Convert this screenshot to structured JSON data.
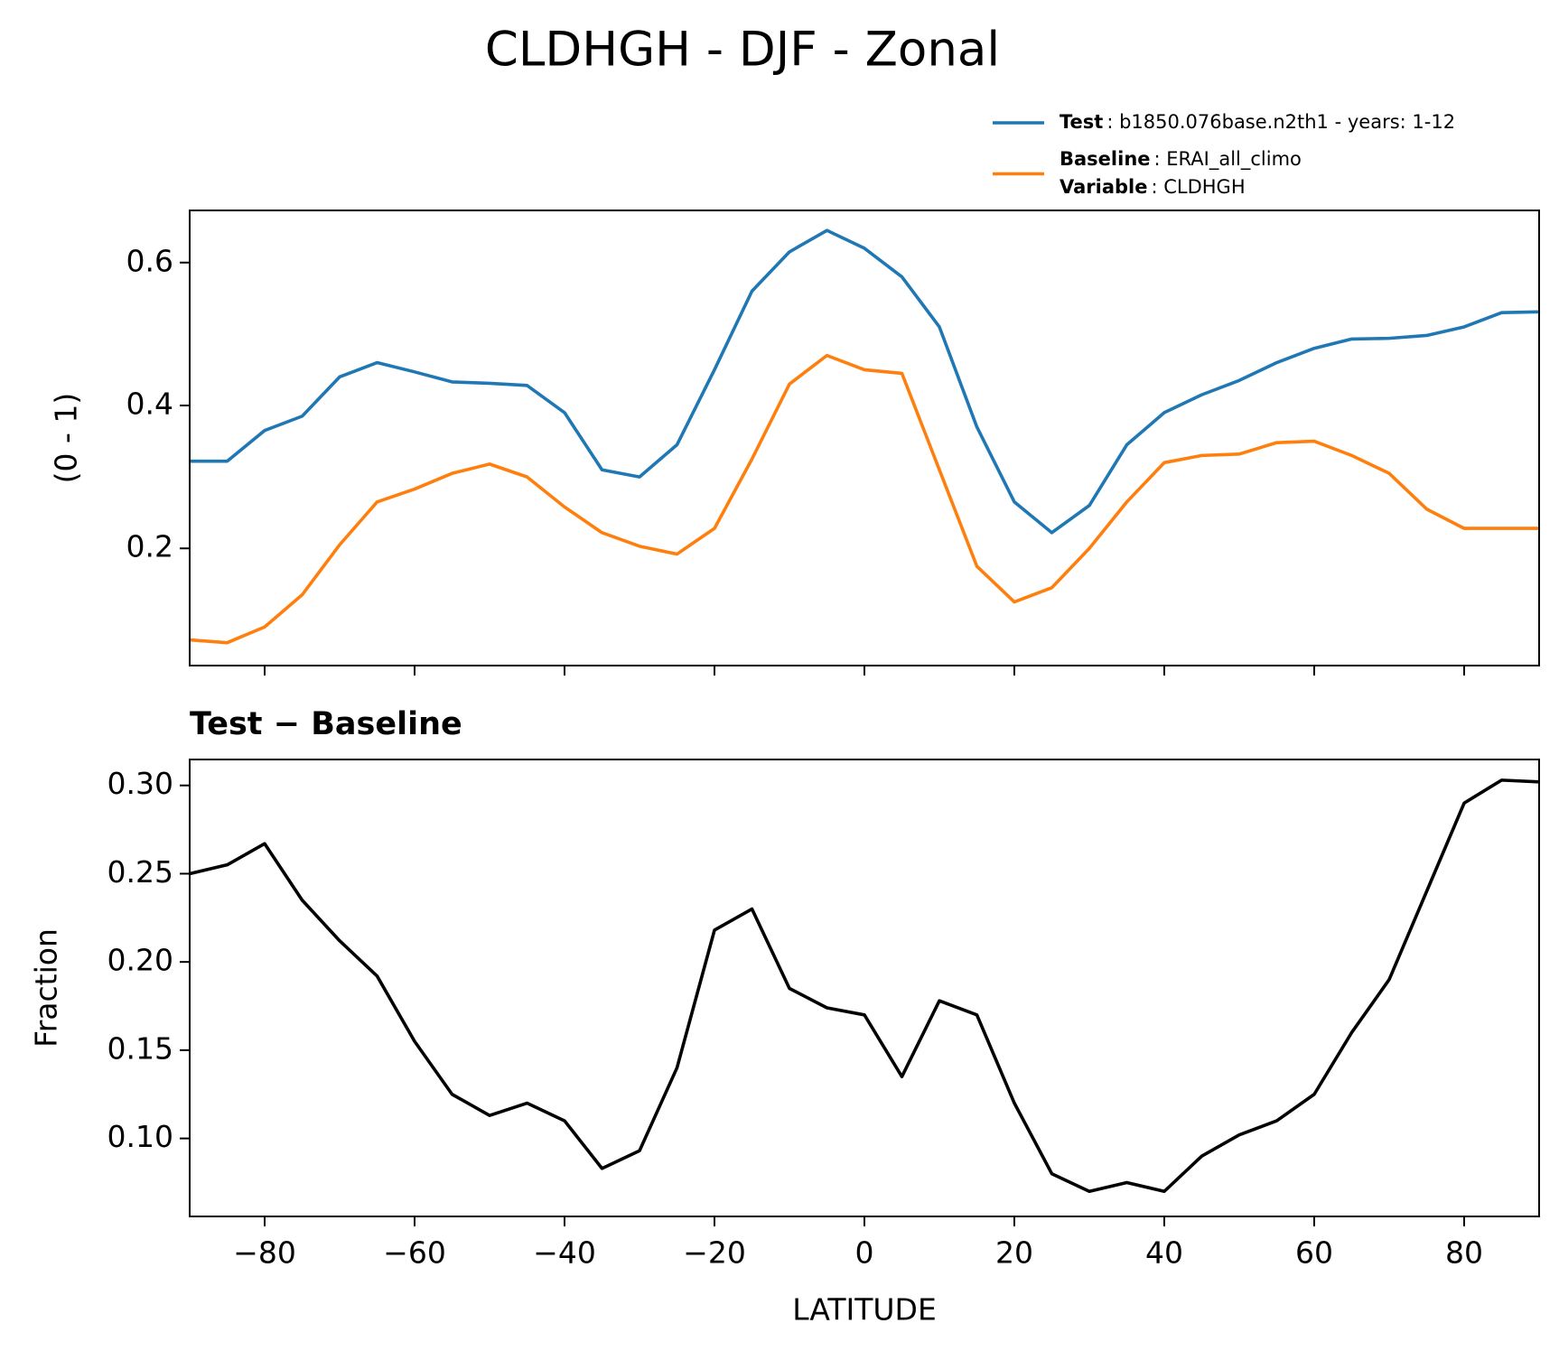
{
  "title": "CLDHGH - DJF - Zonal",
  "chart_data": [
    {
      "type": "line",
      "ylabel": "(0 - 1)",
      "x": [
        -90,
        -85,
        -80,
        -75,
        -70,
        -65,
        -60,
        -55,
        -50,
        -45,
        -40,
        -35,
        -30,
        -25,
        -20,
        -15,
        -10,
        -5,
        0,
        5,
        10,
        15,
        20,
        25,
        30,
        35,
        40,
        45,
        50,
        55,
        60,
        65,
        70,
        75,
        80,
        85,
        90
      ],
      "series": [
        {
          "name": "Test",
          "legend_text": ": b1850.076base.n2th1 - years: 1-12",
          "color": "#1f77b4",
          "values": [
            0.322,
            0.322,
            0.365,
            0.385,
            0.44,
            0.46,
            0.447,
            0.433,
            0.431,
            0.428,
            0.39,
            0.31,
            0.3,
            0.345,
            0.45,
            0.56,
            0.615,
            0.645,
            0.62,
            0.58,
            0.51,
            0.37,
            0.265,
            0.222,
            0.26,
            0.345,
            0.39,
            0.415,
            0.435,
            0.46,
            0.48,
            0.493,
            0.494,
            0.498,
            0.51,
            0.53,
            0.531
          ]
        },
        {
          "name": "Baseline",
          "legend_text": ": ERAI_all_climo",
          "color": "#ff7f0e",
          "values": [
            0.072,
            0.068,
            0.09,
            0.135,
            0.205,
            0.265,
            0.283,
            0.305,
            0.318,
            0.3,
            0.258,
            0.222,
            0.203,
            0.192,
            0.228,
            0.325,
            0.43,
            0.47,
            0.45,
            0.445,
            0.31,
            0.175,
            0.125,
            0.145,
            0.2,
            0.265,
            0.32,
            0.33,
            0.332,
            0.348,
            0.35,
            0.33,
            0.305,
            0.255,
            0.228,
            0.228,
            0.228
          ]
        }
      ],
      "legend_extra": {
        "name": "Variable",
        "legend_text": ": CLDHGH"
      },
      "xlim": [
        -90,
        90
      ],
      "xticks": [
        -80,
        -60,
        -40,
        -20,
        0,
        20,
        40,
        60,
        80
      ],
      "show_xtick_labels": false,
      "ylim": [
        0.036,
        0.673
      ],
      "yticks": [
        0.2,
        0.4,
        0.6
      ]
    },
    {
      "type": "line",
      "title": "Test − Baseline",
      "xlabel": "LATITUDE",
      "ylabel": "Fraction",
      "x": [
        -90,
        -85,
        -80,
        -75,
        -70,
        -65,
        -60,
        -55,
        -50,
        -45,
        -40,
        -35,
        -30,
        -25,
        -20,
        -15,
        -10,
        -5,
        0,
        5,
        10,
        15,
        20,
        25,
        30,
        35,
        40,
        45,
        50,
        55,
        60,
        65,
        70,
        75,
        80,
        85,
        90
      ],
      "series": [
        {
          "color": "#000000",
          "values": [
            0.25,
            0.255,
            0.267,
            0.235,
            0.212,
            0.192,
            0.155,
            0.125,
            0.113,
            0.12,
            0.11,
            0.083,
            0.093,
            0.14,
            0.218,
            0.23,
            0.185,
            0.174,
            0.17,
            0.135,
            0.178,
            0.17,
            0.12,
            0.08,
            0.07,
            0.075,
            0.07,
            0.09,
            0.102,
            0.11,
            0.125,
            0.16,
            0.19,
            0.24,
            0.29,
            0.303,
            0.302
          ]
        }
      ],
      "xlim": [
        -90,
        90
      ],
      "xticks": [
        {
          "value": -80,
          "label": "−80"
        },
        {
          "value": -60,
          "label": "−60"
        },
        {
          "value": -40,
          "label": "−40"
        },
        {
          "value": -20,
          "label": "−20"
        },
        0,
        20,
        40,
        60,
        80
      ],
      "show_xtick_labels": true,
      "ylim": [
        0.0558,
        0.3147
      ],
      "yticks": [
        {
          "value": 0.1,
          "label": "0.10"
        },
        {
          "value": 0.15,
          "label": "0.15"
        },
        {
          "value": 0.2,
          "label": "0.20"
        },
        {
          "value": 0.25,
          "label": "0.25"
        },
        {
          "value": 0.3,
          "label": "0.30"
        }
      ]
    }
  ]
}
